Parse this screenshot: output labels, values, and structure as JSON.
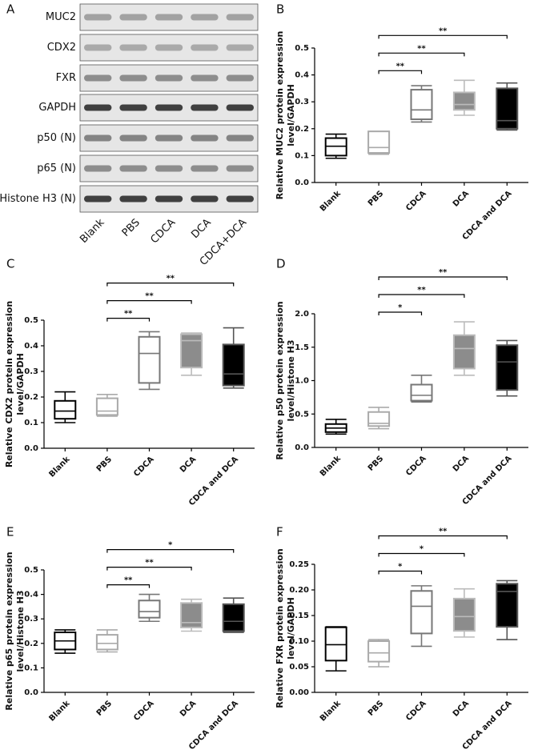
{
  "blot": {
    "panel": "A",
    "rows": [
      "MUC2",
      "CDX2",
      "FXR",
      "GAPDH",
      "p50 (N)",
      "p65 (N)",
      "Histone H3 (N)"
    ],
    "lanes": [
      "Blank",
      "PBS",
      "CDCA",
      "DCA",
      "CDCA+DCA"
    ]
  },
  "chart_data": [
    {
      "type": "box",
      "panel": "B",
      "ylabel": [
        "Relative MUC2 protein expression",
        "level/GAPDH"
      ],
      "categories": [
        "Blank",
        "PBS",
        "CDCA",
        "DCA",
        "CDCA and DCA"
      ],
      "min": [
        0.09,
        0.105,
        0.225,
        0.25,
        0.195
      ],
      "q1": [
        0.1,
        0.11,
        0.235,
        0.27,
        0.2
      ],
      "median": [
        0.135,
        0.13,
        0.27,
        0.29,
        0.23
      ],
      "q3": [
        0.165,
        0.19,
        0.345,
        0.335,
        0.35
      ],
      "max": [
        0.18,
        0.19,
        0.36,
        0.38,
        0.37
      ],
      "box_fill": [
        "#ffffff",
        "#ffffff",
        "#ffffff",
        "#8c8c8c",
        "#000000"
      ],
      "box_edge": [
        "#000000",
        "#aaaaaa",
        "#777777",
        "#bbbbbb",
        "#555555"
      ],
      "ylim": [
        0,
        0.5
      ],
      "yticks": [
        {
          "value": 0,
          "label": "0.0"
        },
        0.1,
        0.2,
        0.3,
        0.4,
        0.5
      ],
      "comparisons": [
        {
          "from": "PBS",
          "to": "CDCA",
          "label": "**"
        },
        {
          "from": "PBS",
          "to": "DCA",
          "label": "**"
        },
        {
          "from": "PBS",
          "to": "CDCA and DCA",
          "label": "**"
        }
      ]
    },
    {
      "type": "box",
      "panel": "C",
      "ylabel": [
        "Relative CDX2 protein expression",
        "level/GAPDH"
      ],
      "categories": [
        "Blank",
        "PBS",
        "CDCA",
        "DCA",
        "CDCA and DCA"
      ],
      "min": [
        0.1,
        0.125,
        0.23,
        0.285,
        0.235
      ],
      "q1": [
        0.115,
        0.13,
        0.255,
        0.315,
        0.245
      ],
      "median": [
        0.145,
        0.145,
        0.37,
        0.42,
        0.29
      ],
      "q3": [
        0.185,
        0.195,
        0.435,
        0.445,
        0.405
      ],
      "max": [
        0.22,
        0.21,
        0.455,
        0.45,
        0.47
      ],
      "box_fill": [
        "#ffffff",
        "#ffffff",
        "#ffffff",
        "#8c8c8c",
        "#000000"
      ],
      "box_edge": [
        "#000000",
        "#aaaaaa",
        "#777777",
        "#bbbbbb",
        "#555555"
      ],
      "ylim": [
        0,
        0.5
      ],
      "yticks": [
        {
          "value": 0,
          "label": "0.0"
        },
        0.1,
        0.2,
        0.3,
        0.4,
        0.5
      ],
      "comparisons": [
        {
          "from": "PBS",
          "to": "CDCA",
          "label": "**"
        },
        {
          "from": "PBS",
          "to": "DCA",
          "label": "**"
        },
        {
          "from": "PBS",
          "to": "CDCA and DCA",
          "label": "**"
        }
      ]
    },
    {
      "type": "box",
      "panel": "D",
      "ylabel": [
        "Relative p50 protein expression",
        "level/Histone H3"
      ],
      "categories": [
        "Blank",
        "PBS",
        "CDCA",
        "DCA",
        "CDCA and DCA"
      ],
      "min": [
        0.2,
        0.28,
        0.68,
        1.08,
        0.77
      ],
      "q1": [
        0.23,
        0.32,
        0.7,
        1.18,
        0.86
      ],
      "median": [
        0.29,
        0.36,
        0.78,
        1.48,
        1.28
      ],
      "q3": [
        0.35,
        0.53,
        0.94,
        1.68,
        1.53
      ],
      "max": [
        0.42,
        0.6,
        1.08,
        1.88,
        1.6
      ],
      "box_fill": [
        "#ffffff",
        "#ffffff",
        "#ffffff",
        "#8c8c8c",
        "#000000"
      ],
      "box_edge": [
        "#000000",
        "#aaaaaa",
        "#777777",
        "#bbbbbb",
        "#555555"
      ],
      "ylim": [
        0,
        2
      ],
      "yticks": [
        {
          "value": 0,
          "label": "0.0"
        },
        0.5,
        {
          "value": 1,
          "label": "1.0"
        },
        1.5,
        {
          "value": 2,
          "label": "2.0"
        }
      ],
      "comparisons": [
        {
          "from": "PBS",
          "to": "CDCA",
          "label": "*"
        },
        {
          "from": "PBS",
          "to": "DCA",
          "label": "**"
        },
        {
          "from": "PBS",
          "to": "CDCA and DCA",
          "label": "**"
        }
      ]
    },
    {
      "type": "box",
      "panel": "E",
      "ylabel": [
        "Relative p65 protein expression",
        "level/Histone H3"
      ],
      "categories": [
        "Blank",
        "PBS",
        "CDCA",
        "DCA",
        "CDCA and DCA"
      ],
      "min": [
        0.16,
        0.165,
        0.29,
        0.25,
        0.245
      ],
      "q1": [
        0.175,
        0.175,
        0.305,
        0.265,
        0.25
      ],
      "median": [
        0.21,
        0.2,
        0.33,
        0.285,
        0.29
      ],
      "q3": [
        0.245,
        0.235,
        0.375,
        0.365,
        0.36
      ],
      "max": [
        0.255,
        0.255,
        0.4,
        0.38,
        0.385
      ],
      "box_fill": [
        "#ffffff",
        "#ffffff",
        "#ffffff",
        "#8c8c8c",
        "#000000"
      ],
      "box_edge": [
        "#000000",
        "#aaaaaa",
        "#777777",
        "#bbbbbb",
        "#555555"
      ],
      "ylim": [
        0,
        0.5
      ],
      "yticks": [
        {
          "value": 0,
          "label": "0.0"
        },
        0.1,
        0.2,
        0.3,
        0.4,
        0.5
      ],
      "comparisons": [
        {
          "from": "PBS",
          "to": "CDCA",
          "label": "**"
        },
        {
          "from": "PBS",
          "to": "DCA",
          "label": "**"
        },
        {
          "from": "PBS",
          "to": "CDCA and DCA",
          "label": "*"
        }
      ]
    },
    {
      "type": "box",
      "panel": "F",
      "ylabel": [
        "Relative FXR protein expression",
        "level/GAPDH"
      ],
      "categories": [
        "Blank",
        "PBS",
        "CDCA",
        "DCA",
        "CDCA and DCA"
      ],
      "min": [
        0.042,
        0.05,
        0.09,
        0.108,
        0.103
      ],
      "q1": [
        0.062,
        0.06,
        0.115,
        0.12,
        0.128
      ],
      "median": [
        0.093,
        0.077,
        0.168,
        0.148,
        0.197
      ],
      "q3": [
        0.127,
        0.1,
        0.198,
        0.183,
        0.212
      ],
      "max": [
        0.128,
        0.103,
        0.208,
        0.202,
        0.218
      ],
      "box_fill": [
        "#ffffff",
        "#ffffff",
        "#ffffff",
        "#8c8c8c",
        "#000000"
      ],
      "box_edge": [
        "#000000",
        "#aaaaaa",
        "#777777",
        "#bbbbbb",
        "#555555"
      ],
      "ylim": [
        0,
        0.25
      ],
      "yticks": [
        {
          "value": 0,
          "label": "0.00"
        },
        {
          "value": 0.05,
          "label": "0.05"
        },
        {
          "value": 0.1,
          "label": "0.10"
        },
        {
          "value": 0.15,
          "label": "0.15"
        },
        {
          "value": 0.2,
          "label": "0.20"
        },
        {
          "value": 0.25,
          "label": "0.25"
        }
      ],
      "comparisons": [
        {
          "from": "PBS",
          "to": "CDCA",
          "label": "*"
        },
        {
          "from": "PBS",
          "to": "DCA",
          "label": "*"
        },
        {
          "from": "PBS",
          "to": "CDCA and DCA",
          "label": "**"
        }
      ]
    }
  ]
}
